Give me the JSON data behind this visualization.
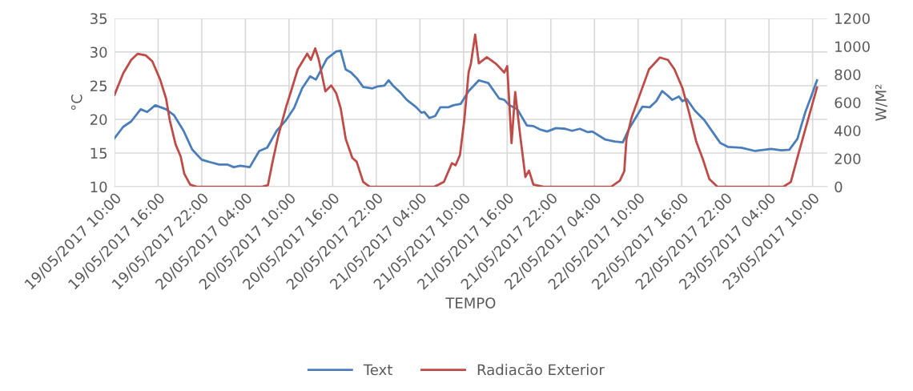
{
  "chart_data": {
    "type": "line",
    "xlabel": "TEMPO",
    "ylabel": "°C",
    "y2label": "W/M²",
    "xlim": [
      "2017-05-19T10:00",
      "2017-05-23T12:00"
    ],
    "xticks": [
      {
        "value": "2017-05-19T10:00",
        "label": "19/05/2017 10:00"
      },
      {
        "value": "2017-05-19T16:00",
        "label": "19/05/2017 16:00"
      },
      {
        "value": "2017-05-19T22:00",
        "label": "19/05/2017 22:00"
      },
      {
        "value": "2017-05-20T04:00",
        "label": "20/05/2017 04:00"
      },
      {
        "value": "2017-05-20T10:00",
        "label": "20/05/2017 10:00"
      },
      {
        "value": "2017-05-20T16:00",
        "label": "20/05/2017 16:00"
      },
      {
        "value": "2017-05-20T22:00",
        "label": "20/05/2017 22:00"
      },
      {
        "value": "2017-05-21T04:00",
        "label": "21/05/2017 04:00"
      },
      {
        "value": "2017-05-21T10:00",
        "label": "21/05/2017 10:00"
      },
      {
        "value": "2017-05-21T16:00",
        "label": "21/05/2017 16:00"
      },
      {
        "value": "2017-05-21T22:00",
        "label": "21/05/2017 22:00"
      },
      {
        "value": "2017-05-22T04:00",
        "label": "22/05/2017 04:00"
      },
      {
        "value": "2017-05-22T10:00",
        "label": "22/05/2017 10:00"
      },
      {
        "value": "2017-05-22T16:00",
        "label": "22/05/2017 16:00"
      },
      {
        "value": "2017-05-22T22:00",
        "label": "22/05/2017 22:00"
      },
      {
        "value": "2017-05-23T04:00",
        "label": "23/05/2017 04:00"
      },
      {
        "value": "2017-05-23T10:00",
        "label": "23/05/2017 10:00"
      }
    ],
    "ylim": [
      10,
      35
    ],
    "yticks": [
      10,
      15,
      20,
      25,
      30,
      35
    ],
    "y2lim": [
      0,
      1200
    ],
    "y2ticks": [
      0,
      200,
      400,
      600,
      800,
      1000,
      1200
    ],
    "grid": true,
    "legend": "bottom",
    "marker": "none",
    "line_style": "solid",
    "series": [
      {
        "name": "Text",
        "color": "#4a7ebb",
        "x": [
          "2017-05-19T10:00",
          "2017-05-19T11:12",
          "2017-05-19T12:18",
          "2017-05-19T13:36",
          "2017-05-19T14:30",
          "2017-05-19T15:36",
          "2017-05-19T17:06",
          "2017-05-19T18:12",
          "2017-05-19T19:30",
          "2017-05-19T20:42",
          "2017-05-19T22:00",
          "2017-05-19T23:18",
          "2017-05-20T00:24",
          "2017-05-20T01:30",
          "2017-05-20T02:24",
          "2017-05-20T03:18",
          "2017-05-20T04:36",
          "2017-05-20T05:54",
          "2017-05-20T07:00",
          "2017-05-20T08:18",
          "2017-05-20T09:36",
          "2017-05-20T10:42",
          "2017-05-20T11:48",
          "2017-05-20T12:54",
          "2017-05-20T13:42",
          "2017-05-20T15:12",
          "2017-05-20T16:30",
          "2017-05-20T17:06",
          "2017-05-20T17:48",
          "2017-05-20T18:30",
          "2017-05-20T19:24",
          "2017-05-20T20:12",
          "2017-05-20T21:30",
          "2017-05-20T22:12",
          "2017-05-20T23:06",
          "2017-05-20T23:42",
          "2017-05-21T00:24",
          "2017-05-21T01:18",
          "2017-05-21T02:12",
          "2017-05-21T03:30",
          "2017-05-21T04:12",
          "2017-05-21T04:36",
          "2017-05-21T05:18",
          "2017-05-21T06:06",
          "2017-05-21T06:48",
          "2017-05-21T07:54",
          "2017-05-21T08:36",
          "2017-05-21T09:36",
          "2017-05-21T10:42",
          "2017-05-21T12:06",
          "2017-05-21T13:24",
          "2017-05-21T14:54",
          "2017-05-21T15:36",
          "2017-05-21T16:18",
          "2017-05-21T17:24",
          "2017-05-21T18:42",
          "2017-05-21T19:36",
          "2017-05-21T20:30",
          "2017-05-21T21:30",
          "2017-05-21T22:42",
          "2017-05-22T00:00",
          "2017-05-22T00:54",
          "2017-05-22T02:00",
          "2017-05-22T03:06",
          "2017-05-22T03:42",
          "2017-05-22T05:30",
          "2017-05-22T06:48",
          "2017-05-22T07:54",
          "2017-05-22T08:48",
          "2017-05-22T09:42",
          "2017-05-22T10:36",
          "2017-05-22T11:36",
          "2017-05-22T12:30",
          "2017-05-22T13:18",
          "2017-05-22T14:00",
          "2017-05-22T14:42",
          "2017-05-22T15:36",
          "2017-05-22T16:06",
          "2017-05-22T16:42",
          "2017-05-22T17:48",
          "2017-05-22T19:06",
          "2017-05-22T20:12",
          "2017-05-22T21:18",
          "2017-05-22T22:24",
          "2017-05-23T00:12",
          "2017-05-23T02:06",
          "2017-05-23T04:18",
          "2017-05-23T05:42",
          "2017-05-23T06:48",
          "2017-05-23T07:54",
          "2017-05-23T09:00",
          "2017-05-23T09:42",
          "2017-05-23T10:36"
        ],
        "values": [
          17.2,
          18.9,
          19.7,
          21.5,
          21.1,
          22.1,
          21.5,
          20.6,
          18.3,
          15.5,
          14.0,
          13.6,
          13.3,
          13.3,
          12.9,
          13.1,
          12.9,
          15.3,
          15.8,
          18.3,
          19.9,
          21.7,
          24.6,
          26.4,
          25.9,
          29.0,
          30.1,
          30.2,
          27.4,
          27.0,
          26.0,
          24.8,
          24.6,
          24.9,
          25.0,
          25.8,
          24.9,
          24.0,
          22.9,
          21.8,
          21.0,
          21.1,
          20.2,
          20.5,
          21.8,
          21.8,
          22.1,
          22.3,
          24.2,
          25.8,
          25.4,
          23.1,
          22.9,
          22.1,
          21.5,
          19.1,
          19.0,
          18.5,
          18.2,
          18.7,
          18.6,
          18.3,
          18.6,
          18.1,
          18.2,
          17.0,
          16.7,
          16.6,
          18.7,
          20.3,
          21.9,
          21.8,
          22.7,
          24.2,
          23.6,
          22.9,
          23.4,
          22.7,
          23.0,
          21.3,
          19.9,
          18.2,
          16.5,
          15.9,
          15.8,
          15.3,
          15.6,
          15.4,
          15.5,
          17.1,
          21.1,
          23.1,
          25.8
        ]
      },
      {
        "name": "Radiacão Exterior",
        "color": "#be4b48",
        "axis": "y2",
        "x": [
          "2017-05-19T10:00",
          "2017-05-19T11:12",
          "2017-05-19T12:18",
          "2017-05-19T13:12",
          "2017-05-19T14:18",
          "2017-05-19T15:12",
          "2017-05-19T16:18",
          "2017-05-19T17:06",
          "2017-05-19T17:36",
          "2017-05-19T18:24",
          "2017-05-19T19:06",
          "2017-05-19T19:36",
          "2017-05-19T20:24",
          "2017-05-19T21:18",
          "2017-05-20T06:18",
          "2017-05-20T07:06",
          "2017-05-20T07:42",
          "2017-05-20T08:30",
          "2017-05-20T09:36",
          "2017-05-20T10:18",
          "2017-05-20T11:12",
          "2017-05-20T12:30",
          "2017-05-20T13:00",
          "2017-05-20T13:36",
          "2017-05-20T14:06",
          "2017-05-20T15:00",
          "2017-05-20T15:48",
          "2017-05-20T16:30",
          "2017-05-20T17:06",
          "2017-05-20T17:48",
          "2017-05-20T18:42",
          "2017-05-20T19:18",
          "2017-05-20T20:12",
          "2017-05-20T21:06",
          "2017-05-21T06:00",
          "2017-05-21T07:18",
          "2017-05-21T08:24",
          "2017-05-21T08:54",
          "2017-05-21T09:30",
          "2017-05-21T10:06",
          "2017-05-21T10:42",
          "2017-05-21T11:00",
          "2017-05-21T11:36",
          "2017-05-21T12:06",
          "2017-05-21T13:12",
          "2017-05-21T14:30",
          "2017-05-21T15:36",
          "2017-05-21T16:00",
          "2017-05-21T16:36",
          "2017-05-21T17:06",
          "2017-05-21T17:48",
          "2017-05-21T18:30",
          "2017-05-21T19:00",
          "2017-05-21T19:36",
          "2017-05-21T21:00",
          "2017-05-22T06:18",
          "2017-05-22T07:30",
          "2017-05-22T08:06",
          "2017-05-22T08:24",
          "2017-05-22T09:06",
          "2017-05-22T10:18",
          "2017-05-22T11:30",
          "2017-05-22T13:00",
          "2017-05-22T14:06",
          "2017-05-22T15:00",
          "2017-05-22T16:06",
          "2017-05-22T17:00",
          "2017-05-22T18:00",
          "2017-05-22T18:54",
          "2017-05-22T19:48",
          "2017-05-22T20:54",
          "2017-05-23T06:00",
          "2017-05-23T07:00",
          "2017-05-23T07:54",
          "2017-05-23T10:36"
        ],
        "values": [
          655,
          808,
          904,
          948,
          936,
          894,
          761,
          627,
          474,
          302,
          216,
          92,
          15,
          0,
          0,
          11,
          168,
          359,
          569,
          684,
          837,
          948,
          904,
          986,
          904,
          680,
          722,
          665,
          560,
          340,
          206,
          178,
          34,
          0,
          0,
          34,
          168,
          153,
          225,
          474,
          818,
          875,
          1085,
          879,
          923,
          875,
          814,
          860,
          311,
          675,
          359,
          69,
          115,
          15,
          0,
          0,
          44,
          111,
          340,
          493,
          665,
          837,
          921,
          904,
          837,
          703,
          531,
          321,
          197,
          54,
          0,
          0,
          34,
          206,
          707
        ]
      }
    ]
  }
}
